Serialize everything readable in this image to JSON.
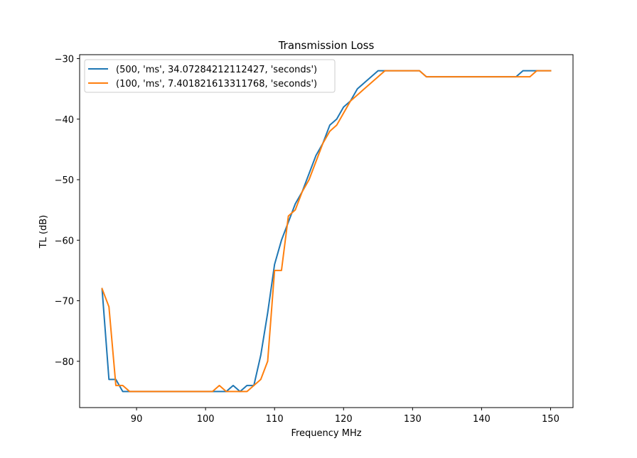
{
  "chart_data": {
    "type": "line",
    "title": "Transmission Loss",
    "xlabel": "Frequency MHz",
    "ylabel": "TL (dB)",
    "xlim": [
      81.75,
      153.25
    ],
    "ylim": [
      -87.65,
      -29.35
    ],
    "xticks": [
      90,
      100,
      110,
      120,
      130,
      140,
      150
    ],
    "yticks": [
      -80,
      -70,
      -60,
      -50,
      -40,
      -30
    ],
    "xtick_labels": [
      "90",
      "100",
      "110",
      "120",
      "130",
      "140",
      "150"
    ],
    "ytick_labels": [
      "−80",
      "−70",
      "−60",
      "−50",
      "−40",
      "−30"
    ],
    "grid": false,
    "legend_position": "upper-left",
    "series": [
      {
        "name": "(500, 'ms', 34.07284212112427, 'seconds')",
        "color": "#1f77b4",
        "x": [
          85,
          86,
          87,
          88,
          89,
          90,
          91,
          92,
          93,
          94,
          95,
          96,
          97,
          98,
          99,
          100,
          101,
          102,
          103,
          104,
          105,
          106,
          107,
          108,
          109,
          110,
          111,
          112,
          113,
          114,
          115,
          116,
          117,
          118,
          119,
          120,
          121,
          122,
          123,
          124,
          125,
          126,
          127,
          128,
          129,
          130,
          131,
          132,
          133,
          134,
          135,
          136,
          137,
          138,
          139,
          140,
          141,
          142,
          143,
          144,
          145,
          146,
          147,
          148,
          149,
          150
        ],
        "y": [
          -68,
          -83,
          -83,
          -85,
          -85,
          -85,
          -85,
          -85,
          -85,
          -85,
          -85,
          -85,
          -85,
          -85,
          -85,
          -85,
          -85,
          -85,
          -85,
          -84,
          -85,
          -84,
          -84,
          -79,
          -72,
          -64,
          -60,
          -57,
          -54,
          -52,
          -49,
          -46,
          -44,
          -41,
          -40,
          -38,
          -37,
          -35,
          -34,
          -33,
          -32,
          -32,
          -32,
          -32,
          -32,
          -32,
          -32,
          -33,
          -33,
          -33,
          -33,
          -33,
          -33,
          -33,
          -33,
          -33,
          -33,
          -33,
          -33,
          -33,
          -33,
          -32,
          -32,
          -32,
          -32,
          -32
        ]
      },
      {
        "name": "(100, 'ms', 7.401821613311768, 'seconds')",
        "color": "#ff7f0e",
        "x": [
          85,
          86,
          87,
          88,
          89,
          90,
          91,
          92,
          93,
          94,
          95,
          96,
          97,
          98,
          99,
          100,
          101,
          102,
          103,
          104,
          105,
          106,
          107,
          108,
          109,
          110,
          111,
          112,
          113,
          114,
          115,
          116,
          117,
          118,
          119,
          120,
          121,
          122,
          123,
          124,
          125,
          126,
          127,
          128,
          129,
          130,
          131,
          132,
          133,
          134,
          135,
          136,
          137,
          138,
          139,
          140,
          141,
          142,
          143,
          144,
          145,
          146,
          147,
          148,
          149,
          150
        ],
        "y": [
          -68,
          -71,
          -84,
          -84,
          -85,
          -85,
          -85,
          -85,
          -85,
          -85,
          -85,
          -85,
          -85,
          -85,
          -85,
          -85,
          -85,
          -84,
          -85,
          -85,
          -85,
          -85,
          -84,
          -83,
          -80,
          -65,
          -65,
          -56,
          -55,
          -52,
          -50,
          -47,
          -44,
          -42,
          -41,
          -39,
          -37,
          -36,
          -35,
          -34,
          -33,
          -32,
          -32,
          -32,
          -32,
          -32,
          -32,
          -33,
          -33,
          -33,
          -33,
          -33,
          -33,
          -33,
          -33,
          -33,
          -33,
          -33,
          -33,
          -33,
          -33,
          -33,
          -33,
          -32,
          -32,
          -32
        ]
      }
    ]
  }
}
